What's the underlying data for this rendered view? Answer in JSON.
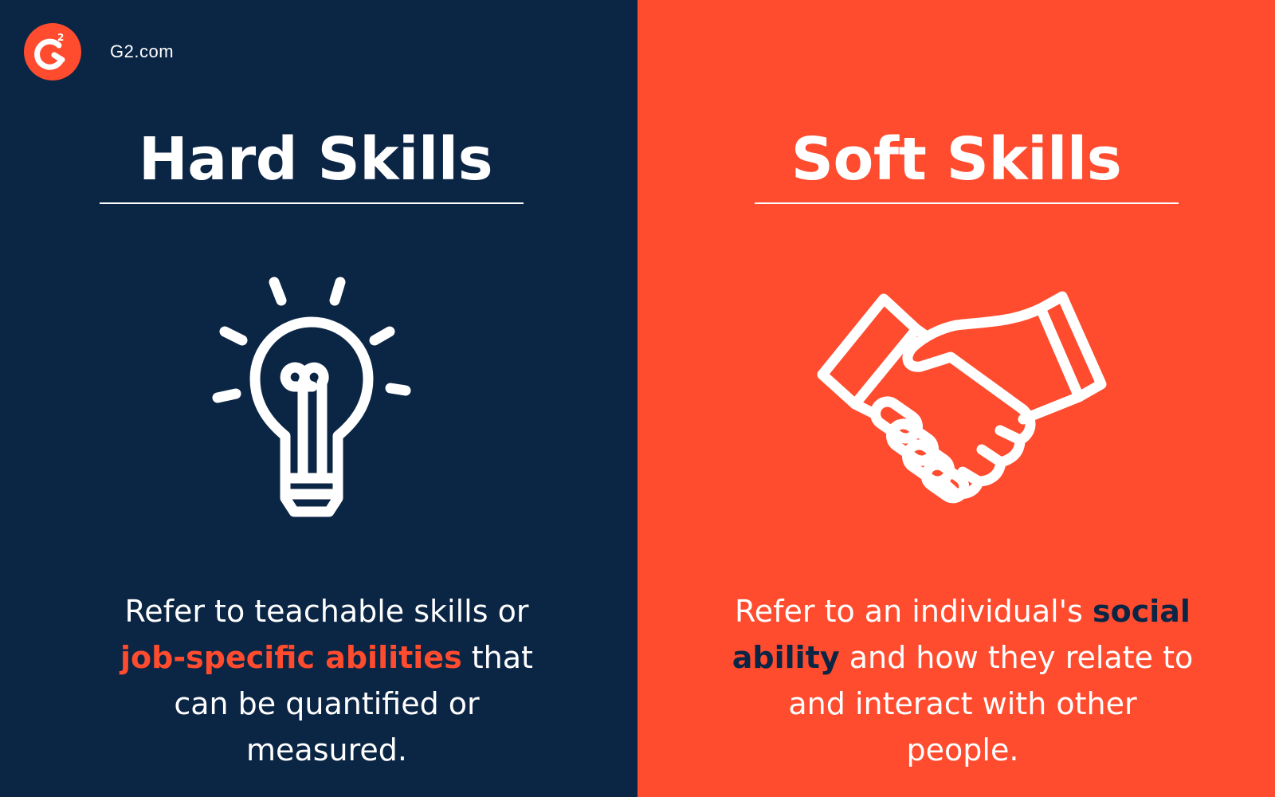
{
  "brand": {
    "site": "G2.com",
    "logo_glyph": "G",
    "logo_superscript": "2"
  },
  "hard": {
    "title": "Hard Skills",
    "icon": "lightbulb-icon",
    "desc_before": "Refer to teachable skills or ",
    "desc_highlight": "job-specific abilities",
    "desc_after": " that can be quantified or measured."
  },
  "soft": {
    "title": "Soft Skills",
    "icon": "handshake-icon",
    "desc_before": "Refer to an individual's ",
    "desc_highlight": "social ability",
    "desc_after": " and how they relate to and interact with other people."
  },
  "colors": {
    "navy": "#0b2545",
    "orange": "#ff4b2e",
    "white": "#ffffff"
  }
}
